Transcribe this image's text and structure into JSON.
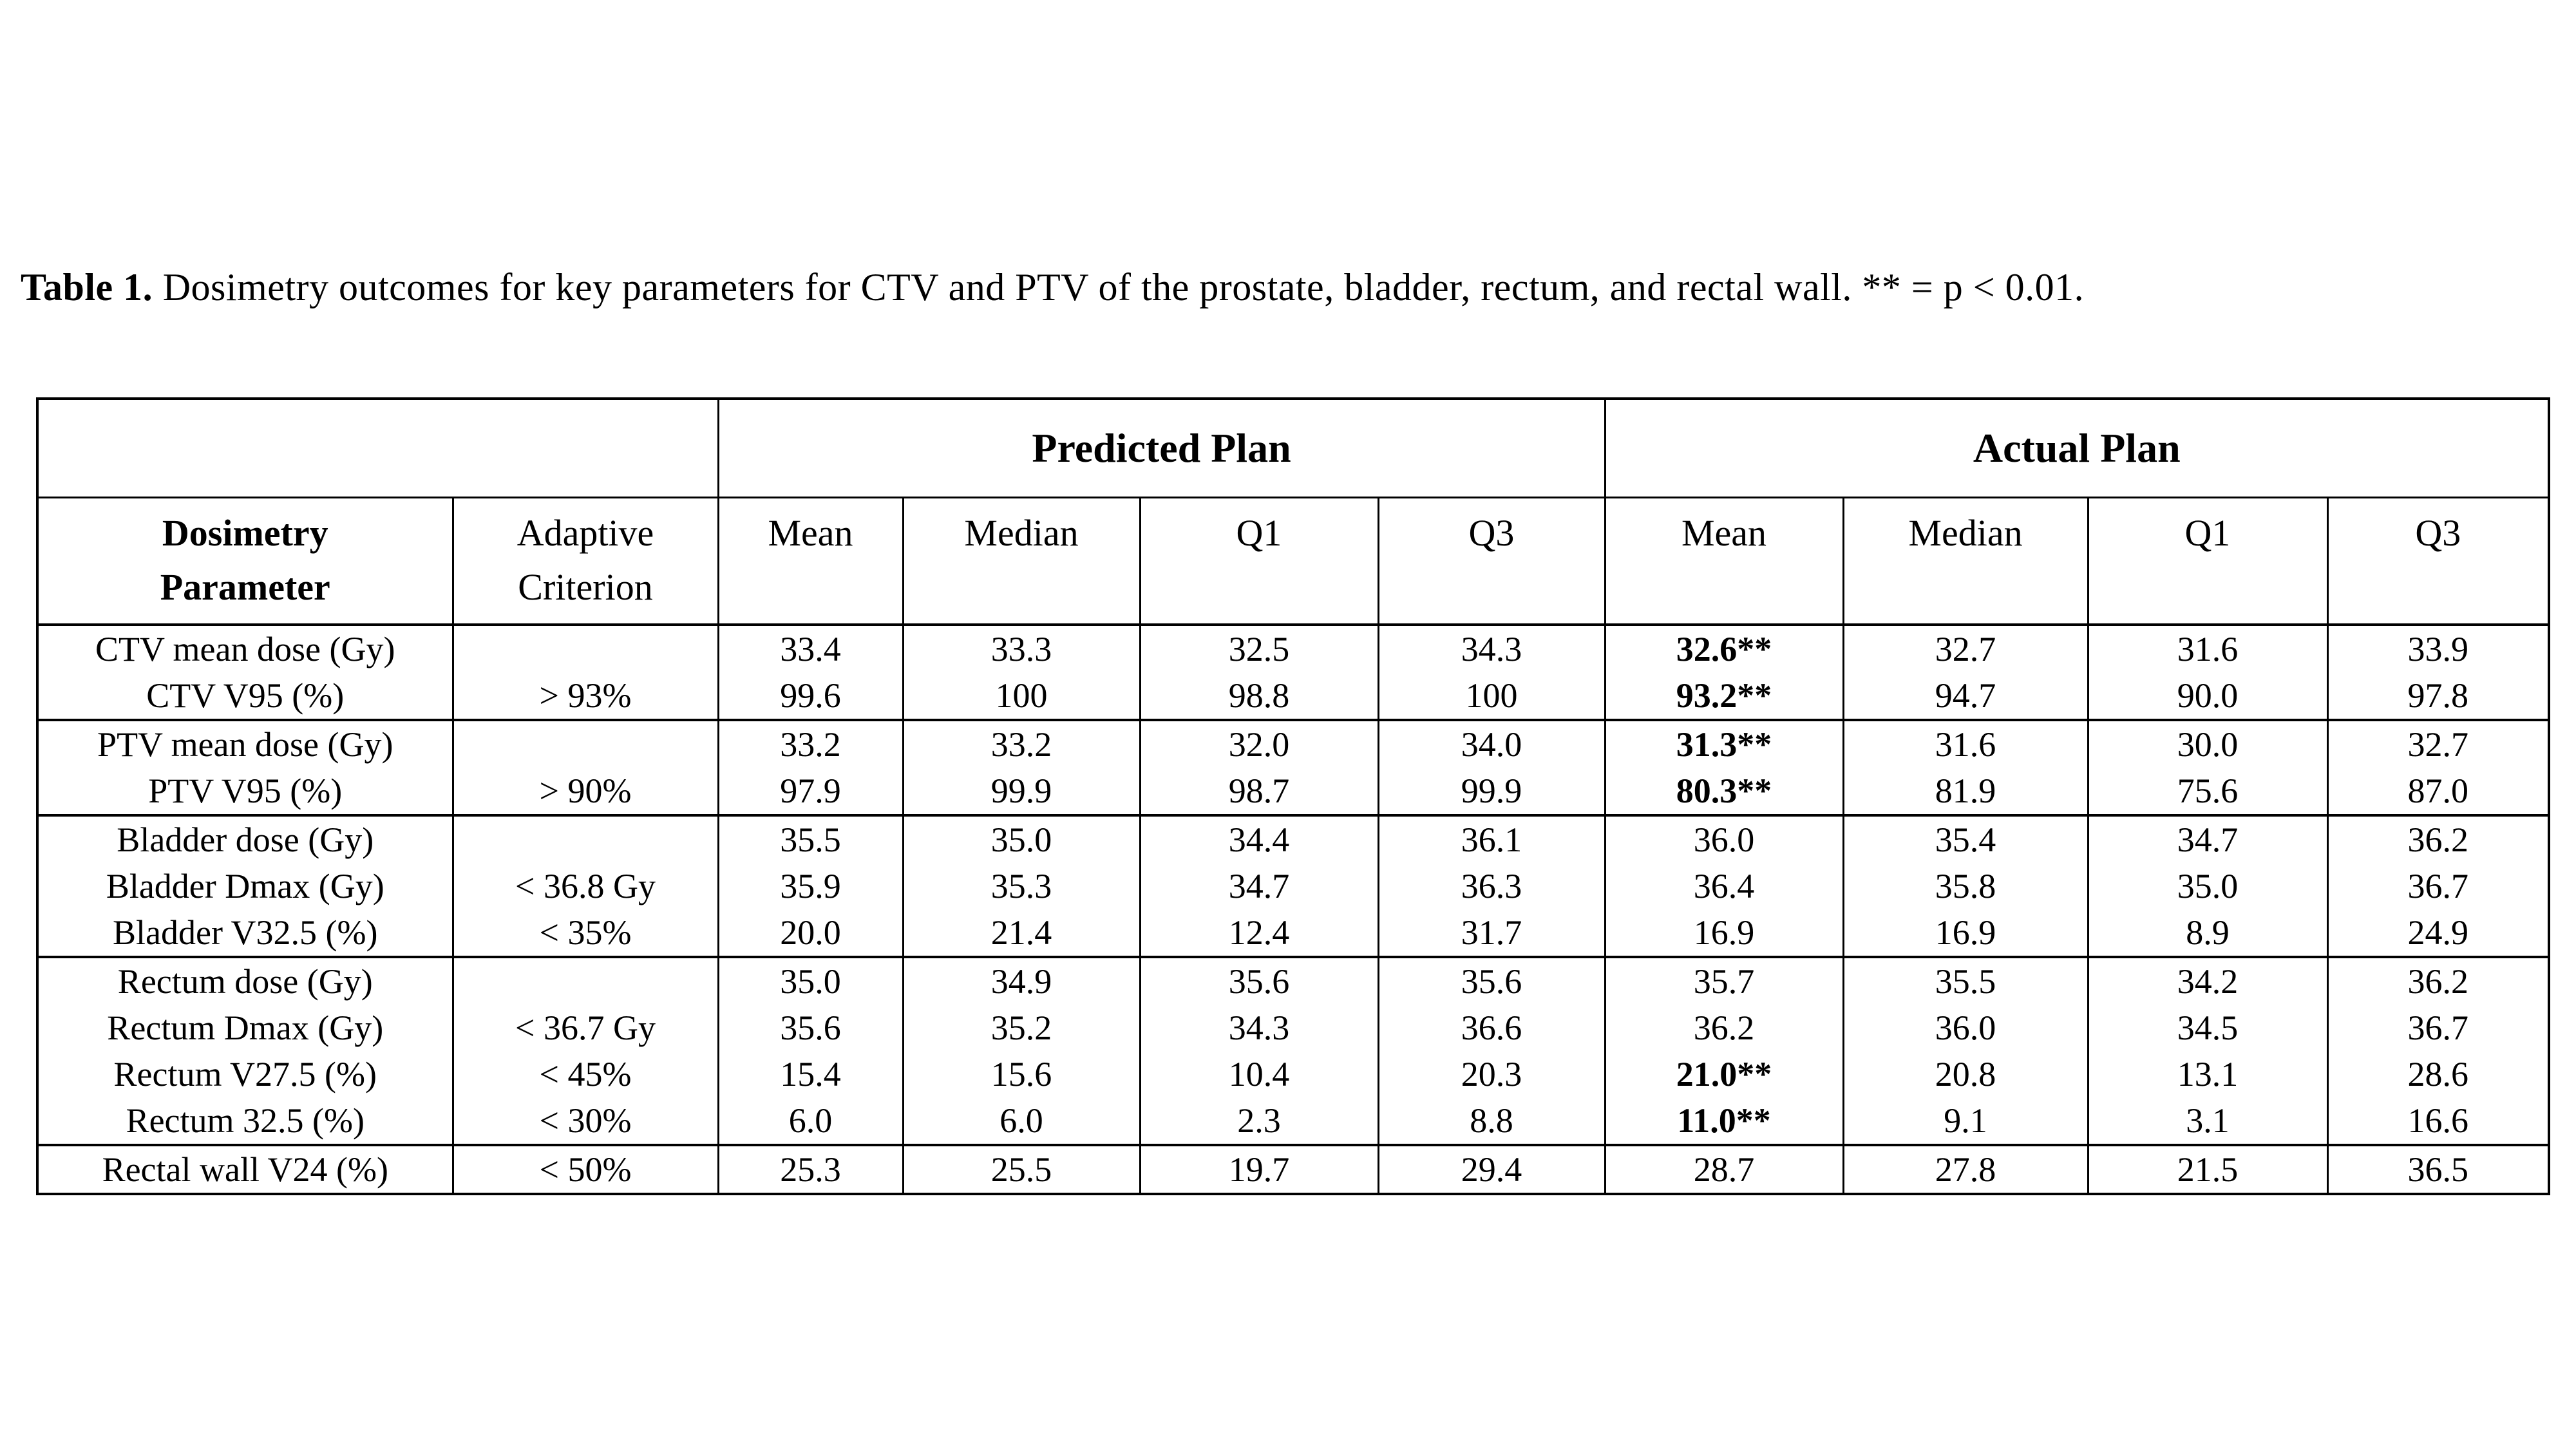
{
  "caption": {
    "label": "Table 1.",
    "body": " Dosimetry outcomes for key parameters for CTV and PTV of the prostate, bladder, rectum, and rectal wall. ** = p < 0.01."
  },
  "table": {
    "corner": "",
    "plan_headers": {
      "predicted": "Predicted Plan",
      "actual": "Actual Plan"
    },
    "column_headers": {
      "parameter_line1": "Dosimetry",
      "parameter_line2": "Parameter",
      "criterion_line1": "Adaptive",
      "criterion_line2": "Criterion",
      "stats": [
        "Mean",
        "Median",
        "Q1",
        "Q3"
      ]
    },
    "groups": [
      {
        "name": "CTV",
        "rows": [
          {
            "parameter": "CTV mean dose (Gy)",
            "criterion": "",
            "predicted": [
              "33.4",
              "33.3",
              "32.5",
              "34.3"
            ],
            "actual": [
              "32.6**",
              "32.7",
              "31.6",
              "33.9"
            ],
            "actual_mean_bold": true
          },
          {
            "parameter": "CTV V95 (%)",
            "criterion": "> 93%",
            "predicted": [
              "99.6",
              "100",
              "98.8",
              "100"
            ],
            "actual": [
              "93.2**",
              "94.7",
              "90.0",
              "97.8"
            ],
            "actual_mean_bold": true
          }
        ]
      },
      {
        "name": "PTV",
        "rows": [
          {
            "parameter": "PTV mean dose (Gy)",
            "criterion": "",
            "predicted": [
              "33.2",
              "33.2",
              "32.0",
              "34.0"
            ],
            "actual": [
              "31.3**",
              "31.6",
              "30.0",
              "32.7"
            ],
            "actual_mean_bold": true
          },
          {
            "parameter": "PTV V95 (%)",
            "criterion": "> 90%",
            "predicted": [
              "97.9",
              "99.9",
              "98.7",
              "99.9"
            ],
            "actual": [
              "80.3**",
              "81.9",
              "75.6",
              "87.0"
            ],
            "actual_mean_bold": true
          }
        ]
      },
      {
        "name": "Bladder",
        "rows": [
          {
            "parameter": "Bladder dose (Gy)",
            "criterion": "",
            "predicted": [
              "35.5",
              "35.0",
              "34.4",
              "36.1"
            ],
            "actual": [
              "36.0",
              "35.4",
              "34.7",
              "36.2"
            ],
            "actual_mean_bold": false
          },
          {
            "parameter": "Bladder Dmax (Gy)",
            "criterion": "< 36.8 Gy",
            "predicted": [
              "35.9",
              "35.3",
              "34.7",
              "36.3"
            ],
            "actual": [
              "36.4",
              "35.8",
              "35.0",
              "36.7"
            ],
            "actual_mean_bold": false
          },
          {
            "parameter": "Bladder V32.5 (%)",
            "criterion": "< 35%",
            "predicted": [
              "20.0",
              "21.4",
              "12.4",
              "31.7"
            ],
            "actual": [
              "16.9",
              "16.9",
              "8.9",
              "24.9"
            ],
            "actual_mean_bold": false
          }
        ]
      },
      {
        "name": "Rectum",
        "rows": [
          {
            "parameter": "Rectum dose (Gy)",
            "criterion": "",
            "predicted": [
              "35.0",
              "34.9",
              "35.6",
              "35.6"
            ],
            "actual": [
              "35.7",
              "35.5",
              "34.2",
              "36.2"
            ],
            "actual_mean_bold": false
          },
          {
            "parameter": "Rectum Dmax (Gy)",
            "criterion": "< 36.7 Gy",
            "predicted": [
              "35.6",
              "35.2",
              "34.3",
              "36.6"
            ],
            "actual": [
              "36.2",
              "36.0",
              "34.5",
              "36.7"
            ],
            "actual_mean_bold": false
          },
          {
            "parameter": "Rectum V27.5 (%)",
            "criterion": "< 45%",
            "predicted": [
              "15.4",
              "15.6",
              "10.4",
              "20.3"
            ],
            "actual": [
              "21.0**",
              "20.8",
              "13.1",
              "28.6"
            ],
            "actual_mean_bold": true
          },
          {
            "parameter": "Rectum 32.5 (%)",
            "criterion": "< 30%",
            "predicted": [
              "6.0",
              "6.0",
              "2.3",
              "8.8"
            ],
            "actual": [
              "11.0**",
              "9.1",
              "3.1",
              "16.6"
            ],
            "actual_mean_bold": true
          }
        ]
      },
      {
        "name": "Rectal wall",
        "rows": [
          {
            "parameter": "Rectal wall V24 (%)",
            "criterion": "< 50%",
            "predicted": [
              "25.3",
              "25.5",
              "19.7",
              "29.4"
            ],
            "actual": [
              "28.7",
              "27.8",
              "21.5",
              "36.5"
            ],
            "actual_mean_bold": false
          }
        ]
      }
    ]
  }
}
